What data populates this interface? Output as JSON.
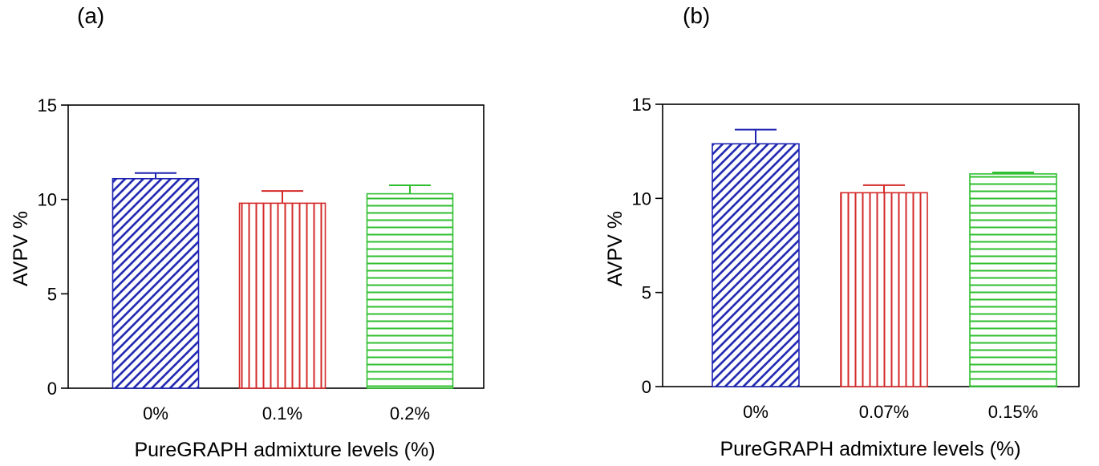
{
  "chart_data": [
    {
      "type": "bar",
      "panel_label": "(a)",
      "categories": [
        "0%",
        "0.1%",
        "0.2%"
      ],
      "values": [
        11.1,
        9.8,
        10.3
      ],
      "errors": [
        0.3,
        0.65,
        0.45
      ],
      "colors": [
        "#1c23b0",
        "#d42a2a",
        "#2fbf2f"
      ],
      "patterns": [
        "diagonal",
        "vertical",
        "horizontal"
      ],
      "xlabel": "PureGRAPH admixture levels (%)",
      "ylabel": "AVPV %",
      "ylim": [
        0,
        15
      ],
      "yticks": [
        "0",
        "5",
        "10",
        "15"
      ],
      "frame": "closed"
    },
    {
      "type": "bar",
      "panel_label": "(b)",
      "categories": [
        "0%",
        "0.07%",
        "0.15%"
      ],
      "values": [
        12.9,
        10.3,
        11.3
      ],
      "errors": [
        0.75,
        0.4,
        0.08
      ],
      "colors": [
        "#1c23b0",
        "#d42a2a",
        "#2fbf2f"
      ],
      "patterns": [
        "diagonal",
        "vertical",
        "horizontal"
      ],
      "xlabel": "PureGRAPH admixture levels (%)",
      "ylabel": "AVPV %",
      "ylim": [
        0,
        15
      ],
      "yticks": [
        "0",
        "5",
        "10",
        "15"
      ],
      "frame": "closed"
    }
  ]
}
